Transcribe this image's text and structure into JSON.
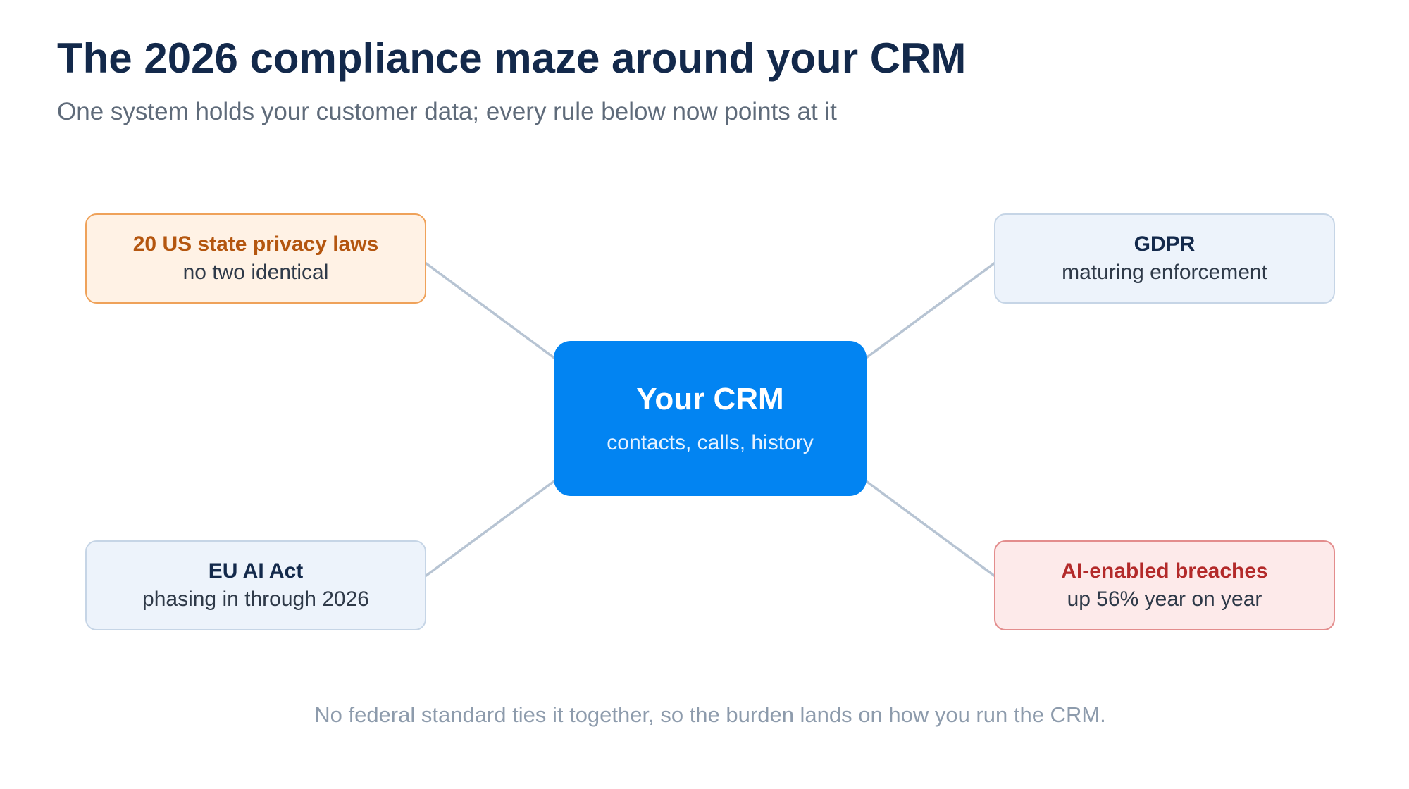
{
  "title": "The 2026 compliance maze around your CRM",
  "subtitle": "One system holds your customer data; every rule below now points at it",
  "center": {
    "title": "Your CRM",
    "description": "contacts, calls, history",
    "color": "#0284f2"
  },
  "nodes": {
    "us_state": {
      "title": "20 US state privacy laws",
      "description": "no two identical",
      "accent": "#b4560f"
    },
    "gdpr": {
      "title": "GDPR",
      "description": "maturing enforcement",
      "accent": "#13294b"
    },
    "eu_ai_act": {
      "title": "EU AI Act",
      "description": "phasing in through 2026",
      "accent": "#13294b"
    },
    "ai_breaches": {
      "title": "AI-enabled breaches",
      "description": "up 56% year on year",
      "accent": "#b32a2a"
    }
  },
  "footnote": "No federal standard ties it together, so the burden lands on how you run the CRM."
}
